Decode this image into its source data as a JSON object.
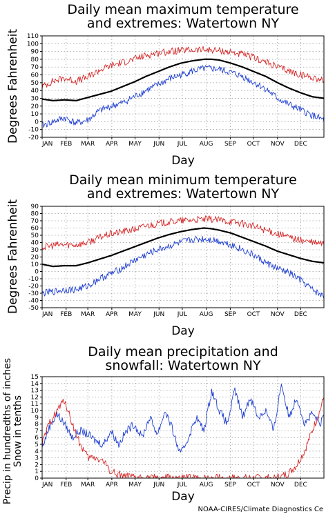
{
  "credit": "NOAA-CIRES/Climate Diagnostics Ce",
  "colors": {
    "mean": "#000000",
    "upper": "#d62828",
    "lower": "#1f3fd0"
  },
  "chart_data": [
    {
      "type": "line",
      "title_lines": [
        "Daily mean maximum temperature",
        "and extremes: Watertown NY"
      ],
      "xlabel": "Day",
      "ylabel_lines": [
        "Degrees Fahrenheit"
      ],
      "categories": [
        "JAN",
        "FEB",
        "MAR",
        "APR",
        "MAY",
        "JUN",
        "JUL",
        "AUG",
        "SEP",
        "OCT",
        "NOV",
        "DEC"
      ],
      "xlim": [
        1,
        365
      ],
      "ylim": [
        -20,
        110
      ],
      "yticks": [
        -20,
        -10,
        0,
        10,
        20,
        30,
        40,
        50,
        60,
        70,
        80,
        90,
        100,
        110
      ],
      "series": [
        {
          "role": "mean",
          "x": [
            1,
            15,
            30,
            45,
            60,
            75,
            90,
            105,
            120,
            135,
            150,
            165,
            180,
            195,
            210,
            220,
            230,
            245,
            260,
            275,
            290,
            305,
            320,
            335,
            350,
            365
          ],
          "values": [
            29,
            27,
            28,
            27,
            31,
            35,
            39,
            45,
            51,
            58,
            64,
            70,
            75,
            78,
            80,
            80,
            79,
            75,
            70,
            64,
            58,
            50,
            43,
            37,
            32,
            30
          ]
        },
        {
          "role": "upper",
          "x": [
            1,
            15,
            30,
            45,
            60,
            75,
            90,
            105,
            120,
            135,
            150,
            165,
            180,
            195,
            210,
            220,
            230,
            245,
            260,
            275,
            290,
            305,
            320,
            335,
            350,
            365
          ],
          "values": [
            45,
            52,
            56,
            52,
            57,
            66,
            72,
            76,
            80,
            85,
            88,
            90,
            91,
            92,
            92,
            92,
            91,
            89,
            86,
            82,
            76,
            70,
            65,
            60,
            57,
            53
          ]
        },
        {
          "role": "lower",
          "x": [
            1,
            15,
            30,
            45,
            60,
            75,
            90,
            105,
            120,
            135,
            150,
            165,
            180,
            195,
            210,
            220,
            230,
            245,
            260,
            275,
            290,
            305,
            320,
            335,
            350,
            365
          ],
          "values": [
            -5,
            0,
            5,
            -2,
            2,
            14,
            20,
            24,
            32,
            40,
            47,
            55,
            60,
            65,
            68,
            68,
            67,
            63,
            58,
            50,
            42,
            30,
            22,
            15,
            8,
            2
          ]
        }
      ]
    },
    {
      "type": "line",
      "title_lines": [
        "Daily mean minimum temperature",
        "and extremes: Watertown NY"
      ],
      "xlabel": "Day",
      "ylabel_lines": [
        "Degrees Fahrenheit"
      ],
      "categories": [
        "JAN",
        "FEB",
        "MAR",
        "APR",
        "MAY",
        "JUN",
        "JUL",
        "AUG",
        "SEP",
        "OCT",
        "NOV",
        "DEC"
      ],
      "xlim": [
        1,
        365
      ],
      "ylim": [
        -50,
        90
      ],
      "yticks": [
        -50,
        -40,
        -30,
        -20,
        -10,
        0,
        10,
        20,
        30,
        40,
        50,
        60,
        70,
        80,
        90
      ],
      "series": [
        {
          "role": "mean",
          "x": [
            1,
            15,
            30,
            45,
            60,
            75,
            90,
            105,
            120,
            135,
            150,
            165,
            180,
            195,
            210,
            220,
            230,
            245,
            260,
            275,
            290,
            305,
            320,
            335,
            350,
            365
          ],
          "values": [
            10,
            7,
            8,
            8,
            12,
            17,
            22,
            28,
            34,
            40,
            46,
            51,
            55,
            58,
            60,
            59,
            57,
            53,
            47,
            41,
            35,
            28,
            23,
            18,
            14,
            12
          ]
        },
        {
          "role": "upper",
          "x": [
            1,
            15,
            30,
            45,
            60,
            75,
            90,
            105,
            120,
            135,
            150,
            165,
            180,
            195,
            210,
            220,
            230,
            245,
            260,
            275,
            290,
            305,
            320,
            335,
            350,
            365
          ],
          "values": [
            33,
            36,
            37,
            37,
            40,
            47,
            52,
            55,
            58,
            63,
            66,
            68,
            70,
            71,
            72,
            72,
            71,
            69,
            66,
            62,
            57,
            52,
            47,
            43,
            40,
            38
          ]
        },
        {
          "role": "lower",
          "x": [
            1,
            15,
            30,
            45,
            60,
            75,
            90,
            105,
            120,
            135,
            150,
            165,
            180,
            195,
            210,
            220,
            230,
            245,
            260,
            275,
            290,
            305,
            320,
            335,
            350,
            365
          ],
          "values": [
            -30,
            -28,
            -25,
            -25,
            -20,
            -10,
            -3,
            5,
            15,
            23,
            30,
            35,
            40,
            44,
            45,
            44,
            42,
            37,
            30,
            22,
            12,
            4,
            -2,
            -12,
            -25,
            -35
          ]
        }
      ]
    },
    {
      "type": "line",
      "title_lines": [
        "Daily mean precipitation and",
        "snowfall: Watertown NY"
      ],
      "xlabel": "Day",
      "ylabel_lines": [
        "Precip in hundredths of inches",
        "Snow in tenths"
      ],
      "categories": [
        "JAN",
        "FEB",
        "MAR",
        "APR",
        "MAY",
        "JUN",
        "JUL",
        "AUG",
        "SEP",
        "OCT",
        "NOV",
        "DEC"
      ],
      "xlim": [
        1,
        365
      ],
      "ylim": [
        0,
        15
      ],
      "yticks": [
        0,
        1,
        2,
        3,
        4,
        5,
        6,
        7,
        8,
        9,
        10,
        11,
        12,
        13,
        14,
        15
      ],
      "series": [
        {
          "role": "precip",
          "x": [
            1,
            10,
            20,
            30,
            40,
            50,
            60,
            70,
            80,
            90,
            100,
            110,
            120,
            130,
            140,
            150,
            160,
            170,
            175,
            180,
            190,
            200,
            210,
            220,
            230,
            240,
            250,
            260,
            270,
            280,
            290,
            300,
            310,
            320,
            330,
            340,
            350,
            360,
            365
          ],
          "values": [
            4.5,
            7.5,
            9.5,
            8,
            6,
            7,
            6.5,
            5.5,
            5,
            7,
            5,
            7,
            8,
            6,
            9,
            6.5,
            10,
            7,
            5,
            3.5,
            6,
            9,
            7,
            13,
            10,
            8,
            13,
            9,
            12,
            9,
            10,
            7,
            14,
            9,
            12,
            8,
            9.5,
            8,
            9
          ]
        },
        {
          "role": "snow",
          "x": [
            1,
            10,
            20,
            30,
            40,
            50,
            60,
            70,
            80,
            90,
            100,
            110,
            120,
            140,
            160,
            180,
            200,
            220,
            240,
            260,
            280,
            300,
            310,
            320,
            330,
            340,
            350,
            360,
            365
          ],
          "values": [
            5,
            8,
            10,
            11.5,
            8,
            5,
            3,
            3,
            2.5,
            1,
            0.5,
            0.2,
            0,
            0,
            0,
            0,
            0,
            0,
            0,
            0,
            0,
            0,
            0.2,
            0.8,
            2,
            4,
            7,
            10,
            12
          ]
        }
      ]
    }
  ]
}
